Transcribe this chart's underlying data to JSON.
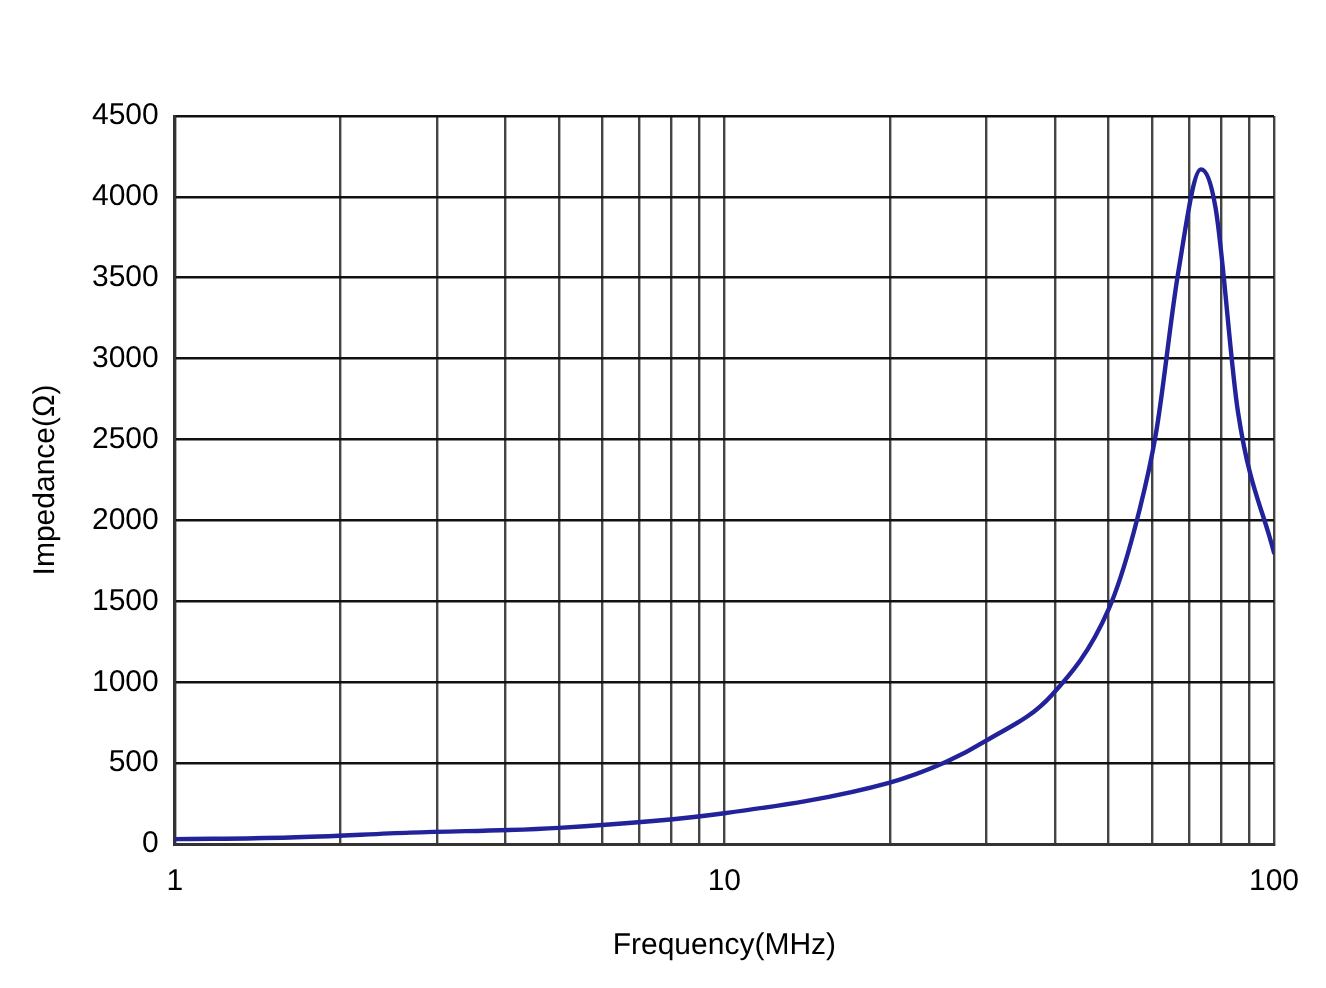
{
  "chart_data": {
    "type": "line",
    "xlabel": "Frequency(MHz)",
    "ylabel": "Impedance(Ω)",
    "log": "x",
    "grid": true,
    "marker": "none",
    "line_style": "solid",
    "legend": false,
    "xlim": [
      1,
      100
    ],
    "ylim": [
      0,
      4500
    ],
    "xticks": [
      1,
      {
        "value": 2,
        "label": null
      },
      {
        "value": 3,
        "label": null
      },
      {
        "value": 4,
        "label": null
      },
      {
        "value": 5,
        "label": null
      },
      {
        "value": 6,
        "label": null
      },
      {
        "value": 7,
        "label": null
      },
      {
        "value": 8,
        "label": null
      },
      {
        "value": 9,
        "label": null
      },
      10,
      {
        "value": 20,
        "label": null
      },
      {
        "value": 30,
        "label": null
      },
      {
        "value": 40,
        "label": null
      },
      {
        "value": 50,
        "label": null
      },
      {
        "value": 60,
        "label": null
      },
      {
        "value": 70,
        "label": null
      },
      {
        "value": 80,
        "label": null
      },
      {
        "value": 90,
        "label": null
      },
      100
    ],
    "yticks": [
      0,
      500,
      1000,
      1500,
      2000,
      2500,
      3000,
      3500,
      4000,
      4500
    ],
    "x": [
      1,
      1.62,
      2.68,
      5,
      10,
      20,
      25.4,
      30,
      39.4,
      50,
      55.6,
      61,
      67,
      73.6,
      78.3,
      86,
      100
    ],
    "series": [
      {
        "color": "#22229a",
        "values": [
          30,
          40,
          70,
          100,
          190,
          380,
          510,
          640,
          920,
          1450,
          1930,
          2540,
          3540,
          4170,
          3930,
          2670,
          1800
        ]
      }
    ]
  }
}
